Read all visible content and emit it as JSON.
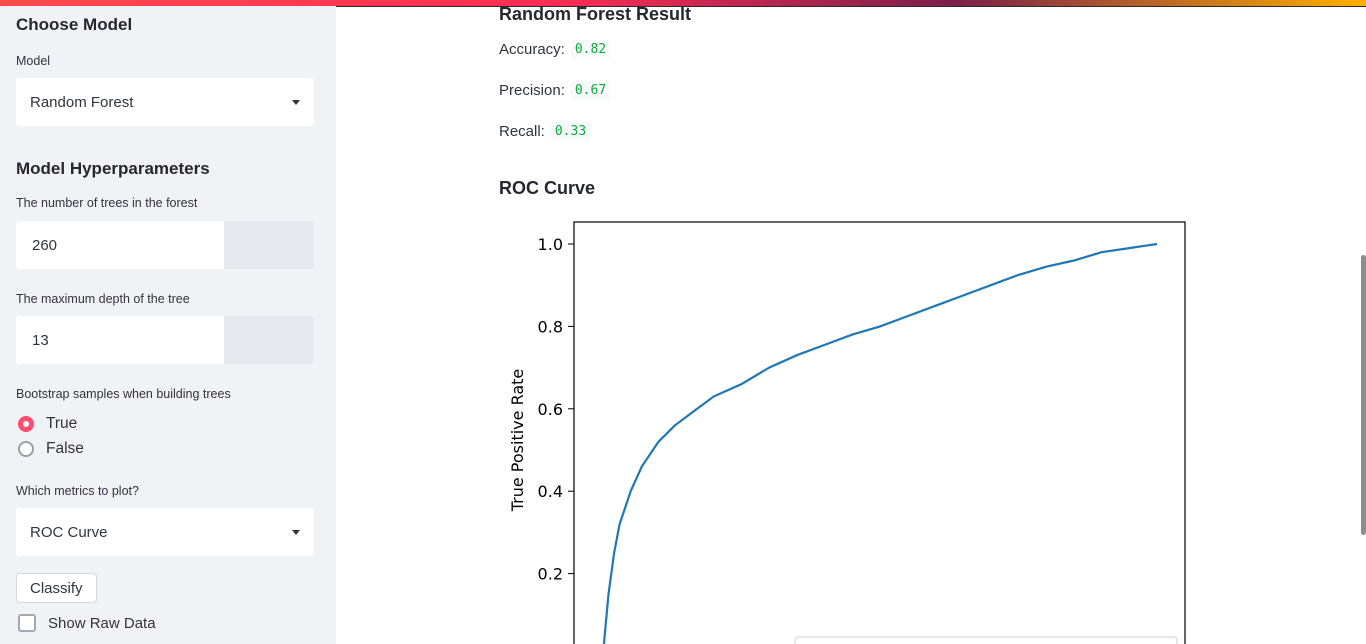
{
  "sidebar": {
    "choose_model_heading": "Choose Model",
    "model_label": "Model",
    "model_value": "Random Forest",
    "hyper_heading": "Model Hyperparameters",
    "trees_label": "The number of trees in the forest",
    "trees_value": "260",
    "depth_label": "The maximum depth of the tree",
    "depth_value": "13",
    "bootstrap_label": "Bootstrap samples when building trees",
    "bootstrap_options": [
      {
        "label": "True",
        "selected": true
      },
      {
        "label": "False",
        "selected": false
      }
    ],
    "metrics_label": "Which metrics to plot?",
    "metrics_value": "ROC Curve",
    "classify_label": "Classify",
    "raw_data_label": "Show Raw Data",
    "raw_data_checked": false
  },
  "main": {
    "result_heading": "Random Forest Result",
    "accuracy_label": "Accuracy:",
    "accuracy_value": "0.82",
    "precision_label": "Precision:",
    "precision_value": "0.67",
    "recall_label": "Recall:",
    "recall_value": "0.33",
    "chart_heading": "ROC Curve"
  },
  "colors": {
    "accent": "#ff4b6e",
    "metric_green": "#09ab3b",
    "line": "#1f77b4"
  },
  "chart_data": {
    "type": "line",
    "title": "",
    "xlabel": "",
    "ylabel": "True Positive Rate",
    "ylim": [
      0,
      1.05
    ],
    "y_ticks": [
      "1.0",
      "0.8",
      "0.6",
      "0.4",
      "0.2"
    ],
    "series": [
      {
        "x": [
          0.0,
          0.003,
          0.01,
          0.02,
          0.03,
          0.05,
          0.07,
          0.1,
          0.13,
          0.16,
          0.2,
          0.25,
          0.3,
          0.35,
          0.4,
          0.45,
          0.5,
          0.55,
          0.6,
          0.65,
          0.7,
          0.75,
          0.8,
          0.85,
          0.9,
          0.95,
          1.0
        ],
        "y": [
          0.0,
          0.05,
          0.15,
          0.25,
          0.32,
          0.4,
          0.46,
          0.52,
          0.56,
          0.59,
          0.63,
          0.66,
          0.7,
          0.73,
          0.755,
          0.78,
          0.8,
          0.825,
          0.85,
          0.875,
          0.9,
          0.925,
          0.945,
          0.96,
          0.98,
          0.99,
          1.0
        ]
      }
    ]
  }
}
